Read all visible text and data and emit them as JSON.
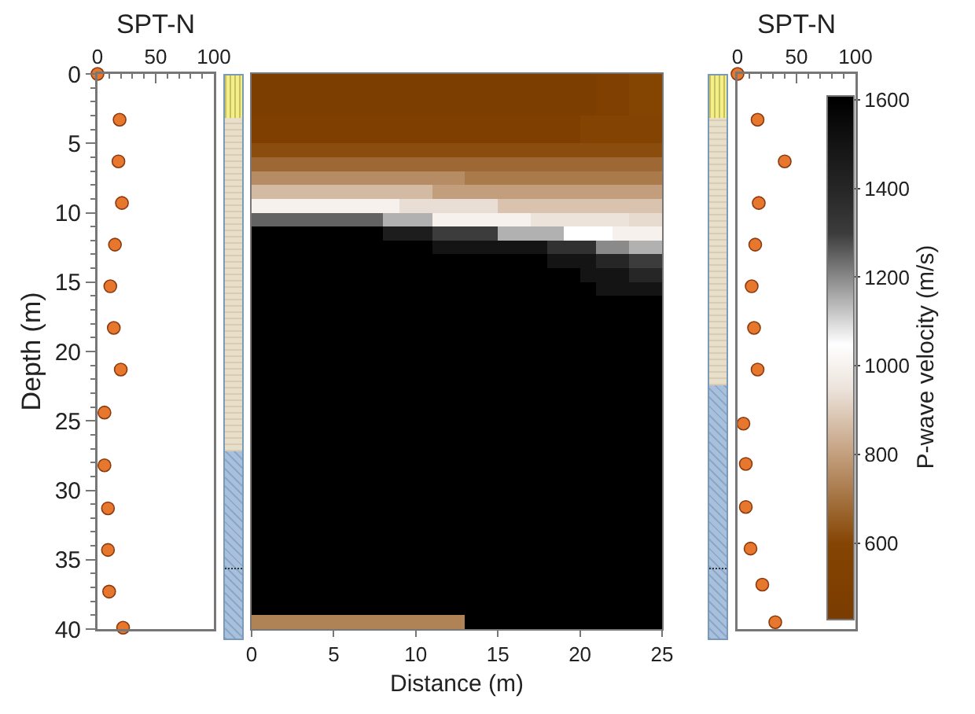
{
  "chart_data": [
    {
      "type": "scatter",
      "xlabel": "SPT-N",
      "ylabel": "Depth (m)",
      "marker": "circle",
      "color": "#e8772e",
      "x": [
        0,
        19,
        18,
        21,
        15,
        11,
        14,
        20,
        6,
        6,
        9,
        9,
        10,
        22
      ],
      "values": [
        0,
        3.3,
        6.3,
        9.3,
        12.3,
        15.3,
        18.3,
        21.3,
        24.4,
        28.2,
        31.3,
        34.3,
        37.3,
        39.9
      ],
      "xlim": [
        0,
        100
      ],
      "xticks": [
        0,
        50,
        100
      ],
      "ylim": [
        40,
        0
      ],
      "yticks": [
        0,
        5,
        10,
        15,
        20,
        25,
        30,
        35,
        40
      ]
    },
    {
      "type": "heatmap",
      "xlabel": "Distance (m)",
      "clabel": "P-wave velocity (m/s)",
      "tick_labels": "x",
      "x": [
        0.5,
        1.5,
        2.5,
        3.5,
        4.5,
        5.5,
        6.5,
        7.5,
        8.5,
        9.5,
        10.5,
        11.5,
        12.5,
        13.5,
        14.5,
        15.5,
        16.5,
        17.5,
        18.5,
        19.5,
        20.5,
        21.5,
        22.5,
        23.5,
        24.5
      ],
      "y": [
        0.5,
        1.5,
        2.5,
        3.5,
        4.5,
        5.5,
        6.5,
        7.5,
        8.5,
        9.5,
        10.5,
        11.5,
        12.5,
        13.5,
        14.5,
        15.5,
        16.5,
        17.5,
        18.5,
        19.5,
        20.5,
        21.5,
        22.5,
        23.5,
        24.5,
        25.5,
        26.5,
        27.5,
        28.5,
        29.5,
        30.5,
        31.5,
        32.5,
        33.5,
        34.5,
        35.5,
        36.5,
        37.5,
        38.5,
        39.5
      ],
      "xlim": [
        0,
        25
      ],
      "xticks": [
        0,
        5,
        10,
        15,
        20,
        25
      ],
      "ylim": [
        40,
        0
      ],
      "clim": [
        430,
        1610
      ],
      "cticks": [
        600,
        800,
        1000,
        1200,
        1400,
        1600
      ],
      "cells": [
        [
          480,
          480,
          480,
          480,
          480,
          480,
          480,
          480,
          480,
          480,
          480,
          480,
          480,
          480,
          480,
          480,
          480,
          480,
          480,
          480,
          480,
          520,
          520,
          600,
          600
        ],
        [
          480,
          480,
          480,
          480,
          480,
          480,
          480,
          480,
          480,
          480,
          480,
          480,
          480,
          480,
          480,
          480,
          480,
          480,
          480,
          480,
          480,
          520,
          520,
          600,
          600
        ],
        [
          480,
          480,
          480,
          480,
          480,
          480,
          480,
          480,
          480,
          480,
          480,
          480,
          480,
          480,
          480,
          480,
          480,
          480,
          480,
          480,
          480,
          520,
          520,
          600,
          600
        ],
        [
          500,
          500,
          500,
          500,
          500,
          500,
          500,
          500,
          500,
          500,
          500,
          500,
          500,
          500,
          500,
          500,
          500,
          500,
          500,
          500,
          580,
          580,
          580,
          580,
          580
        ],
        [
          500,
          500,
          500,
          500,
          500,
          500,
          500,
          500,
          500,
          500,
          500,
          500,
          500,
          500,
          500,
          500,
          500,
          500,
          500,
          500,
          580,
          580,
          580,
          580,
          580
        ],
        [
          620,
          620,
          620,
          620,
          620,
          620,
          620,
          620,
          620,
          620,
          620,
          620,
          620,
          620,
          620,
          620,
          620,
          620,
          620,
          620,
          620,
          620,
          620,
          620,
          620
        ],
        [
          680,
          680,
          680,
          680,
          680,
          680,
          680,
          680,
          680,
          680,
          680,
          680,
          680,
          680,
          680,
          680,
          680,
          680,
          680,
          680,
          680,
          680,
          680,
          680,
          680
        ],
        [
          760,
          760,
          760,
          760,
          760,
          760,
          760,
          760,
          760,
          760,
          760,
          760,
          760,
          720,
          720,
          720,
          720,
          720,
          720,
          720,
          720,
          720,
          720,
          720,
          720
        ],
        [
          860,
          860,
          860,
          860,
          860,
          860,
          860,
          860,
          860,
          860,
          860,
          800,
          800,
          800,
          800,
          800,
          800,
          800,
          800,
          800,
          800,
          800,
          800,
          800,
          800
        ],
        [
          1000,
          1000,
          1000,
          1000,
          1000,
          1000,
          1000,
          1000,
          1000,
          940,
          940,
          940,
          940,
          940,
          940,
          880,
          880,
          880,
          880,
          880,
          880,
          880,
          880,
          880,
          880
        ],
        [
          1250,
          1250,
          1250,
          1250,
          1250,
          1250,
          1250,
          1250,
          1150,
          1150,
          1150,
          1000,
          1000,
          1000,
          1000,
          1000,
          1000,
          950,
          950,
          950,
          950,
          950,
          950,
          930,
          930
        ],
        [
          1600,
          1600,
          1600,
          1600,
          1600,
          1600,
          1600,
          1600,
          1450,
          1450,
          1450,
          1300,
          1300,
          1300,
          1300,
          1150,
          1150,
          1150,
          1150,
          1050,
          1050,
          1050,
          1000,
          1000,
          1000
        ],
        [
          1600,
          1600,
          1600,
          1600,
          1600,
          1600,
          1600,
          1600,
          1600,
          1600,
          1600,
          1500,
          1500,
          1500,
          1500,
          1500,
          1500,
          1500,
          1350,
          1350,
          1350,
          1200,
          1200,
          1150,
          1150
        ],
        [
          1600,
          1600,
          1600,
          1600,
          1600,
          1600,
          1600,
          1600,
          1600,
          1600,
          1600,
          1600,
          1600,
          1600,
          1600,
          1600,
          1600,
          1600,
          1500,
          1500,
          1500,
          1400,
          1400,
          1300,
          1300
        ],
        [
          1600,
          1600,
          1600,
          1600,
          1600,
          1600,
          1600,
          1600,
          1600,
          1600,
          1600,
          1600,
          1600,
          1600,
          1600,
          1600,
          1600,
          1600,
          1600,
          1600,
          1500,
          1500,
          1500,
          1400,
          1400
        ],
        [
          1600,
          1600,
          1600,
          1600,
          1600,
          1600,
          1600,
          1600,
          1600,
          1600,
          1600,
          1600,
          1600,
          1600,
          1600,
          1600,
          1600,
          1600,
          1600,
          1600,
          1600,
          1500,
          1500,
          1500,
          1500
        ],
        [
          1600,
          1600,
          1600,
          1600,
          1600,
          1600,
          1600,
          1600,
          1600,
          1600,
          1600,
          1600,
          1600,
          1600,
          1600,
          1600,
          1600,
          1600,
          1600,
          1600,
          1600,
          1600,
          1600,
          1600,
          1600
        ],
        [
          1600,
          1600,
          1600,
          1600,
          1600,
          1600,
          1600,
          1600,
          1600,
          1600,
          1600,
          1600,
          1600,
          1600,
          1600,
          1600,
          1600,
          1600,
          1600,
          1600,
          1600,
          1600,
          1600,
          1600,
          1600
        ],
        [
          1600,
          1600,
          1600,
          1600,
          1600,
          1600,
          1600,
          1600,
          1600,
          1600,
          1600,
          1600,
          1600,
          1600,
          1600,
          1600,
          1600,
          1600,
          1600,
          1600,
          1600,
          1600,
          1600,
          1600,
          1600
        ],
        [
          1600,
          1600,
          1600,
          1600,
          1600,
          1600,
          1600,
          1600,
          1600,
          1600,
          1600,
          1600,
          1600,
          1600,
          1600,
          1600,
          1600,
          1600,
          1600,
          1600,
          1600,
          1600,
          1600,
          1600,
          1600
        ],
        [
          1600,
          1600,
          1600,
          1600,
          1600,
          1600,
          1600,
          1600,
          1600,
          1600,
          1600,
          1600,
          1600,
          1600,
          1600,
          1600,
          1600,
          1600,
          1600,
          1600,
          1600,
          1600,
          1600,
          1600,
          1600
        ],
        [
          1600,
          1600,
          1600,
          1600,
          1600,
          1600,
          1600,
          1600,
          1600,
          1600,
          1600,
          1600,
          1600,
          1600,
          1600,
          1600,
          1600,
          1600,
          1600,
          1600,
          1600,
          1600,
          1600,
          1600,
          1600
        ],
        [
          1600,
          1600,
          1600,
          1600,
          1600,
          1600,
          1600,
          1600,
          1600,
          1600,
          1600,
          1600,
          1600,
          1600,
          1600,
          1600,
          1600,
          1600,
          1600,
          1600,
          1600,
          1600,
          1600,
          1600,
          1600
        ],
        [
          1600,
          1600,
          1600,
          1600,
          1600,
          1600,
          1600,
          1600,
          1600,
          1600,
          1600,
          1600,
          1600,
          1600,
          1600,
          1600,
          1600,
          1600,
          1600,
          1600,
          1600,
          1600,
          1600,
          1600,
          1600
        ],
        [
          1600,
          1600,
          1600,
          1600,
          1600,
          1600,
          1600,
          1600,
          1600,
          1600,
          1600,
          1600,
          1600,
          1600,
          1600,
          1600,
          1600,
          1600,
          1600,
          1600,
          1600,
          1600,
          1600,
          1600,
          1600
        ],
        [
          1600,
          1600,
          1600,
          1600,
          1600,
          1600,
          1600,
          1600,
          1600,
          1600,
          1600,
          1600,
          1600,
          1600,
          1600,
          1600,
          1600,
          1600,
          1600,
          1600,
          1600,
          1600,
          1600,
          1600,
          1600
        ],
        [
          1600,
          1600,
          1600,
          1600,
          1600,
          1600,
          1600,
          1600,
          1600,
          1600,
          1600,
          1600,
          1600,
          1600,
          1600,
          1600,
          1600,
          1600,
          1600,
          1600,
          1600,
          1600,
          1600,
          1600,
          1600
        ],
        [
          1600,
          1600,
          1600,
          1600,
          1600,
          1600,
          1600,
          1600,
          1600,
          1600,
          1600,
          1600,
          1600,
          1600,
          1600,
          1600,
          1600,
          1600,
          1600,
          1600,
          1600,
          1600,
          1600,
          1600,
          1600
        ],
        [
          1600,
          1600,
          1600,
          1600,
          1600,
          1600,
          1600,
          1600,
          1600,
          1600,
          1600,
          1600,
          1600,
          1600,
          1600,
          1600,
          1600,
          1600,
          1600,
          1600,
          1600,
          1600,
          1600,
          1600,
          1600
        ],
        [
          1600,
          1600,
          1600,
          1600,
          1600,
          1600,
          1600,
          1600,
          1600,
          1600,
          1600,
          1600,
          1600,
          1600,
          1600,
          1600,
          1600,
          1600,
          1600,
          1600,
          1600,
          1600,
          1600,
          1600,
          1600
        ],
        [
          1600,
          1600,
          1600,
          1600,
          1600,
          1600,
          1600,
          1600,
          1600,
          1600,
          1600,
          1600,
          1600,
          1600,
          1600,
          1600,
          1600,
          1600,
          1600,
          1600,
          1600,
          1600,
          1600,
          1600,
          1600
        ],
        [
          1600,
          1600,
          1600,
          1600,
          1600,
          1600,
          1600,
          1600,
          1600,
          1600,
          1600,
          1600,
          1600,
          1600,
          1600,
          1600,
          1600,
          1600,
          1600,
          1600,
          1600,
          1600,
          1600,
          1600,
          1600
        ],
        [
          1600,
          1600,
          1600,
          1600,
          1600,
          1600,
          1600,
          1600,
          1600,
          1600,
          1600,
          1600,
          1600,
          1600,
          1600,
          1600,
          1600,
          1600,
          1600,
          1600,
          1600,
          1600,
          1600,
          1600,
          1600
        ],
        [
          1600,
          1600,
          1600,
          1600,
          1600,
          1600,
          1600,
          1600,
          1600,
          1600,
          1600,
          1600,
          1600,
          1600,
          1600,
          1600,
          1600,
          1600,
          1600,
          1600,
          1600,
          1600,
          1600,
          1600,
          1600
        ],
        [
          1600,
          1600,
          1600,
          1600,
          1600,
          1600,
          1600,
          1600,
          1600,
          1600,
          1600,
          1600,
          1600,
          1600,
          1600,
          1600,
          1600,
          1600,
          1600,
          1600,
          1600,
          1600,
          1600,
          1600,
          1600
        ],
        [
          1600,
          1600,
          1600,
          1600,
          1600,
          1600,
          1600,
          1600,
          1600,
          1600,
          1600,
          1600,
          1600,
          1600,
          1600,
          1600,
          1600,
          1600,
          1600,
          1600,
          1600,
          1600,
          1600,
          1600,
          1600
        ],
        [
          1600,
          1600,
          1600,
          1600,
          1600,
          1600,
          1600,
          1600,
          1600,
          1600,
          1600,
          1600,
          1600,
          1600,
          1600,
          1600,
          1600,
          1600,
          1600,
          1600,
          1600,
          1600,
          1600,
          1600,
          1600
        ],
        [
          1600,
          1600,
          1600,
          1600,
          1600,
          1600,
          1600,
          1600,
          1600,
          1600,
          1600,
          1600,
          1600,
          1600,
          1600,
          1600,
          1600,
          1600,
          1600,
          1600,
          1600,
          1600,
          1600,
          1600,
          1600
        ],
        [
          1600,
          1600,
          1600,
          1600,
          1600,
          1600,
          1600,
          1600,
          1600,
          1600,
          1600,
          1600,
          1600,
          1600,
          1600,
          1600,
          1600,
          1600,
          1600,
          1600,
          1600,
          1600,
          1600,
          1600,
          1600
        ],
        [
          740,
          740,
          740,
          740,
          740,
          740,
          740,
          740,
          740,
          740,
          740,
          740,
          740,
          1600,
          1600,
          1600,
          1600,
          1600,
          1600,
          1600,
          1600,
          1600,
          1600,
          1600,
          1600
        ]
      ]
    },
    {
      "type": "scatter",
      "xlabel": "SPT-N",
      "marker": "circle",
      "color": "#e8772e",
      "tick_labels": "x",
      "x": [
        0,
        17,
        40,
        18,
        15,
        12,
        14,
        17,
        5,
        7,
        7,
        11,
        21,
        32
      ],
      "values": [
        0,
        3.3,
        6.3,
        9.3,
        12.3,
        15.3,
        18.3,
        21.3,
        25.2,
        28.1,
        31.2,
        34.2,
        36.8,
        39.5
      ],
      "xlim": [
        0,
        100
      ],
      "xticks": [
        0,
        50,
        100
      ],
      "ylim": [
        40,
        0
      ]
    }
  ]
}
